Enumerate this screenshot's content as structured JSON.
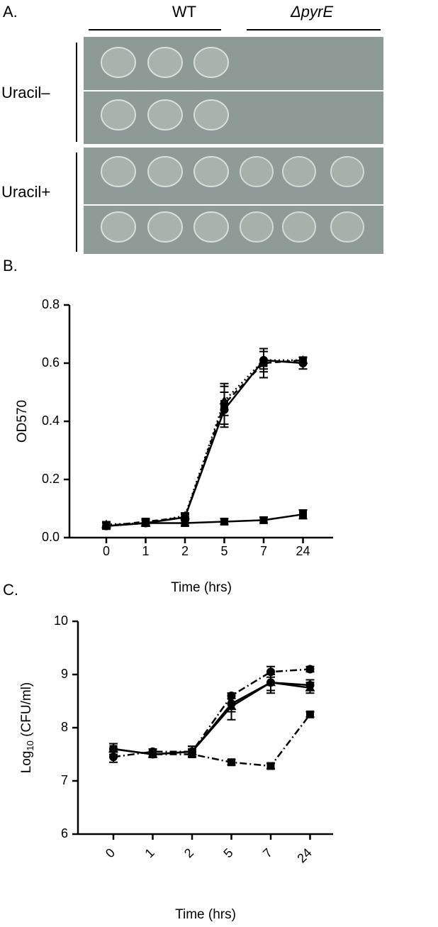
{
  "panel_a": {
    "panel_label": "A.",
    "col_labels": [
      "WT",
      "ΔpyrE"
    ],
    "row_labels": [
      "Uracil–",
      "Uracil+"
    ]
  },
  "chart_data": [
    {
      "type": "line",
      "panel_label": "B.",
      "ylabel": "OD570",
      "xlabel": "Time (hrs)",
      "categories": [
        "0",
        "1",
        "2",
        "5",
        "7",
        "24"
      ],
      "ylim": [
        0,
        0.8
      ],
      "yticks": [
        {
          "value": 0,
          "label": "0.0"
        },
        0.2,
        0.4,
        0.6,
        0.8
      ],
      "rotate_xticks": false,
      "series": [
        {
          "color": "#000000",
          "style": "solid",
          "marker": "circle",
          "values": [
            0.04,
            0.05,
            0.07,
            0.44,
            0.61,
            0.6
          ],
          "errors": [
            0.01,
            0.01,
            0.01,
            0.06,
            0.04,
            0.02
          ]
        },
        {
          "color": "#000000",
          "style": "dashed",
          "marker": "square",
          "values": [
            0.04,
            0.055,
            0.07,
            0.46,
            0.6,
            0.61
          ],
          "errors": [
            0.01,
            0.01,
            0.01,
            0.07,
            0.05,
            0.01
          ]
        },
        {
          "color": "#000000",
          "style": "dotted",
          "marker": "triangle",
          "values": [
            0.045,
            0.05,
            0.075,
            0.47,
            0.61,
            0.61
          ],
          "errors": [
            0.01,
            0.01,
            0.01,
            0.05,
            0.03,
            0.01
          ]
        },
        {
          "color": "#000000",
          "style": "solid",
          "marker": "square",
          "values": [
            0.04,
            0.05,
            0.05,
            0.055,
            0.06,
            0.08
          ],
          "errors": [
            0.01,
            0.01,
            0.01,
            0.01,
            0.01,
            0.015
          ]
        }
      ]
    },
    {
      "type": "line",
      "panel_label": "C.",
      "ylabel_parts": [
        "Log",
        "10",
        " (CFU/ml)"
      ],
      "xlabel": "Time (hrs)",
      "categories": [
        "0",
        "1",
        "2",
        "5",
        "7",
        "24"
      ],
      "ylim": [
        6,
        10
      ],
      "yticks": [
        6,
        7,
        8,
        9,
        10
      ],
      "rotate_xticks": true,
      "series": [
        {
          "color": "#000000",
          "style": "solid",
          "marker": "circle",
          "values": [
            7.6,
            7.5,
            7.55,
            8.45,
            8.85,
            8.8
          ],
          "errors": [
            0.1,
            0.05,
            0.1,
            0.15,
            0.15,
            0.1
          ]
        },
        {
          "color": "#000000",
          "style": "solid",
          "marker": "triangle",
          "values": [
            7.6,
            7.5,
            7.55,
            8.4,
            8.85,
            8.75
          ],
          "errors": [
            0.1,
            0.05,
            0.1,
            0.25,
            0.2,
            0.1
          ]
        },
        {
          "color": "#000000",
          "style": "dashdot",
          "marker": "circle",
          "values": [
            7.45,
            7.55,
            7.55,
            8.6,
            9.05,
            9.1
          ],
          "errors": [
            0.1,
            0.05,
            0.05,
            0.05,
            0.1,
            0.05
          ]
        },
        {
          "color": "#000000",
          "style": "dashdot",
          "marker": "square",
          "values": [
            7.6,
            7.5,
            7.5,
            7.35,
            7.28,
            8.25
          ],
          "errors": [
            0.1,
            0.05,
            0.05,
            0.05,
            0.05,
            0.05
          ]
        }
      ]
    }
  ]
}
